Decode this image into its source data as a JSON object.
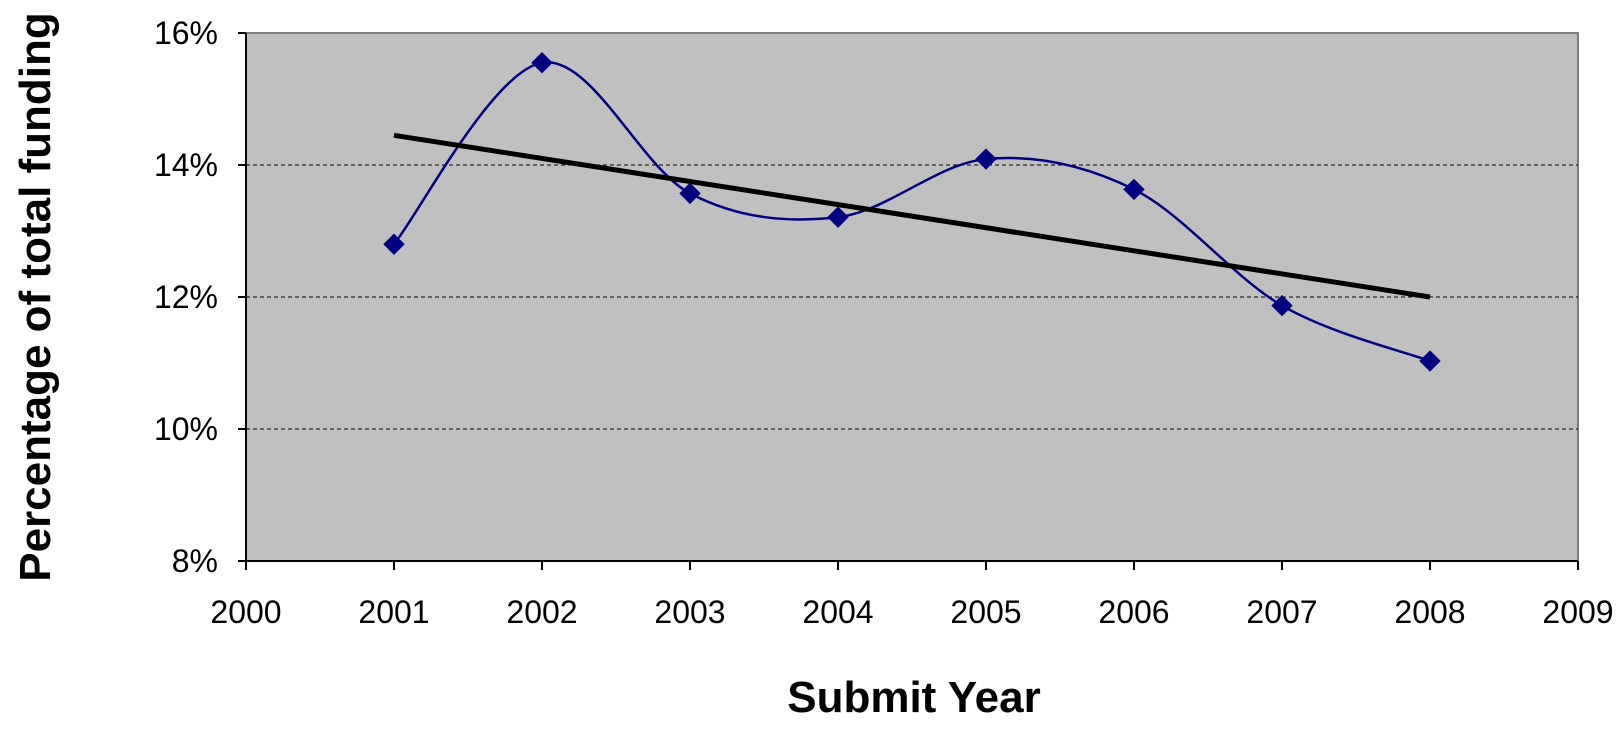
{
  "chart_data": {
    "type": "line",
    "title": "",
    "xlabel": "Submit Year",
    "ylabel": "Percentage of total funding",
    "xlim": [
      2000,
      2009
    ],
    "ylim": [
      0.08,
      0.16
    ],
    "x_ticks": [
      "2000",
      "2001",
      "2002",
      "2003",
      "2004",
      "2005",
      "2006",
      "2007",
      "2008",
      "2009"
    ],
    "y_ticks": [
      "8%",
      "10%",
      "12%",
      "14%",
      "16%"
    ],
    "y_tick_values": [
      0.08,
      0.1,
      0.12,
      0.14,
      0.16
    ],
    "grid": "horizontal dashed",
    "legend": "none",
    "series": [
      {
        "x": [
          2001,
          2002,
          2003,
          2004,
          2005,
          2006,
          2007,
          2008
        ],
        "values": [
          0.128,
          0.1555,
          0.1357,
          0.1321,
          0.1409,
          0.1363,
          0.1187,
          0.1103
        ],
        "marker": "diamond",
        "smoothed": true,
        "color": "#000080"
      },
      {
        "x": [
          2001,
          2008
        ],
        "values": [
          0.1445,
          0.12
        ],
        "style": "linear trendline",
        "color": "#000000"
      }
    ],
    "plot_background": "#c0c0c0"
  }
}
